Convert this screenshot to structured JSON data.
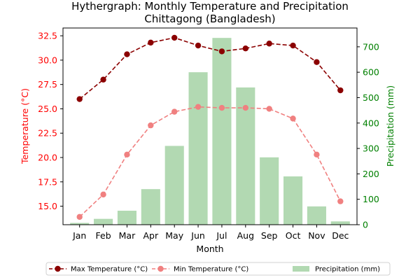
{
  "chart_data": {
    "type": "bar+line",
    "title": "Hythergraph: Monthly Temperature and Precipitation",
    "subtitle": "Chittagong (Bangladesh)",
    "xlabel": "Month",
    "ylabel_left": "Temperature (°C)",
    "ylabel_right": "Precipitation (mm)",
    "categories": [
      "Jan",
      "Feb",
      "Mar",
      "Apr",
      "May",
      "Jun",
      "Jul",
      "Aug",
      "Sep",
      "Oct",
      "Nov",
      "Dec"
    ],
    "ylim_left": [
      13.1,
      33.3
    ],
    "ylim_right": [
      0,
      774
    ],
    "yticks_left": [
      "15.0",
      "17.5",
      "20.0",
      "22.5",
      "25.0",
      "27.5",
      "30.0",
      "32.5"
    ],
    "yticks_right": [
      "0",
      "100",
      "200",
      "300",
      "400",
      "500",
      "600",
      "700"
    ],
    "series": [
      {
        "name": "Max Temperature (°C)",
        "type": "line",
        "axis": "left",
        "color": "#8b0000",
        "style": "dashed",
        "marker": "circle",
        "values": [
          26.0,
          28.0,
          30.6,
          31.8,
          32.3,
          31.5,
          30.9,
          31.2,
          31.7,
          31.5,
          29.8,
          26.9
        ]
      },
      {
        "name": "Min Temperature (°C)",
        "type": "line",
        "axis": "left",
        "color": "#f08080",
        "style": "dashed",
        "marker": "circle",
        "values": [
          13.9,
          16.2,
          20.3,
          23.3,
          24.7,
          25.2,
          25.1,
          25.1,
          25.0,
          24.0,
          20.3,
          15.5
        ]
      },
      {
        "name": "Precipitation (mm)",
        "type": "bar",
        "axis": "right",
        "color": "#b2d9b2",
        "values": [
          7,
          23,
          55,
          140,
          310,
          600,
          735,
          540,
          265,
          190,
          72,
          13
        ]
      }
    ],
    "legend_position": "bottom",
    "grid": false
  }
}
